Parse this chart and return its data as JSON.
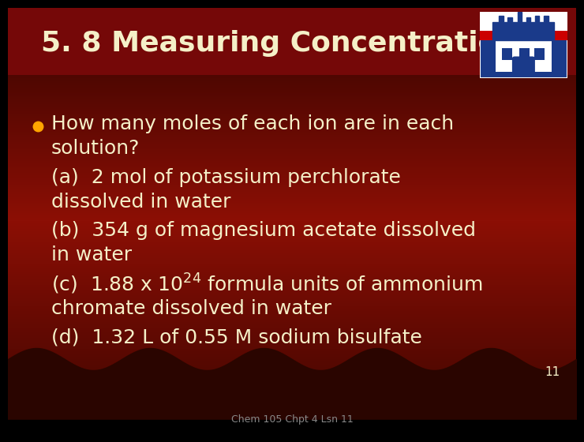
{
  "title": "5. 8 Measuring Concentrations",
  "text_color": "#F5F0C8",
  "bullet_color": "#FFA500",
  "footer": "Chem 105 Chpt 4 Lsn 11",
  "slide_number": "11",
  "body_fontsize": 18,
  "title_fontsize": 26,
  "footer_fontsize": 9,
  "bg_colors": [
    "#3a0800",
    "#8B1008",
    "#991010",
    "#8B1008",
    "#3a0800"
  ],
  "title_bg": "#7a0808",
  "wave_color": "#2a0500",
  "black_bottom": "#000000"
}
